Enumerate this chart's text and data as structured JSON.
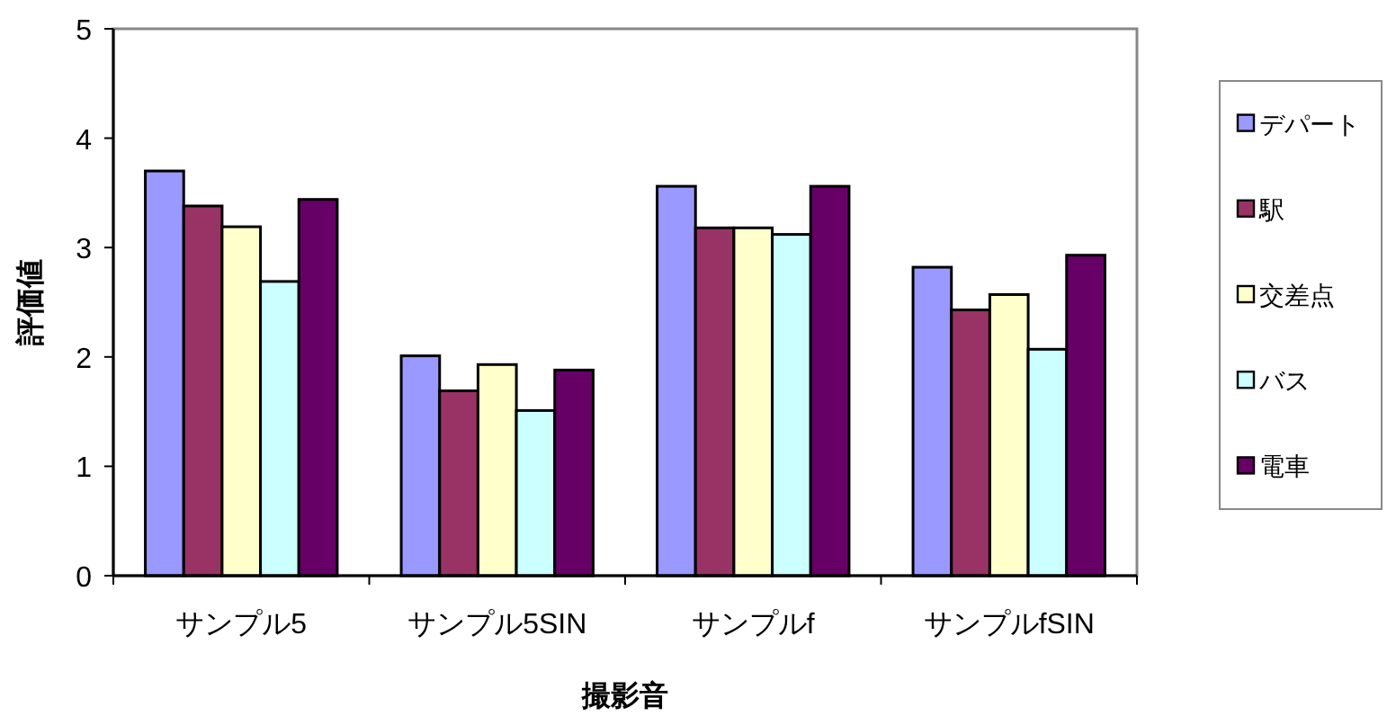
{
  "chart_data": {
    "type": "bar",
    "xlabel": "撮影音",
    "ylabel": "評価値",
    "categories": [
      "サンプル5",
      "サンプル5SIN",
      "サンプルf",
      "サンプルfSIN"
    ],
    "series": [
      {
        "name": "デパート",
        "color": "#9999ff",
        "values": [
          3.7,
          2.01,
          3.56,
          2.82
        ]
      },
      {
        "name": "駅",
        "color": "#993366",
        "values": [
          3.38,
          1.69,
          3.18,
          2.43
        ]
      },
      {
        "name": "交差点",
        "color": "#ffffcc",
        "values": [
          3.19,
          1.93,
          3.18,
          2.57
        ]
      },
      {
        "name": "バス",
        "color": "#ccffff",
        "values": [
          2.69,
          1.51,
          3.12,
          2.07
        ]
      },
      {
        "name": "電車",
        "color": "#660066",
        "values": [
          3.44,
          1.88,
          3.56,
          2.93
        ]
      }
    ],
    "ylim": [
      0,
      5
    ],
    "yticks": [
      0,
      1,
      2,
      3,
      4,
      5
    ],
    "grid": false,
    "legend": "right"
  }
}
